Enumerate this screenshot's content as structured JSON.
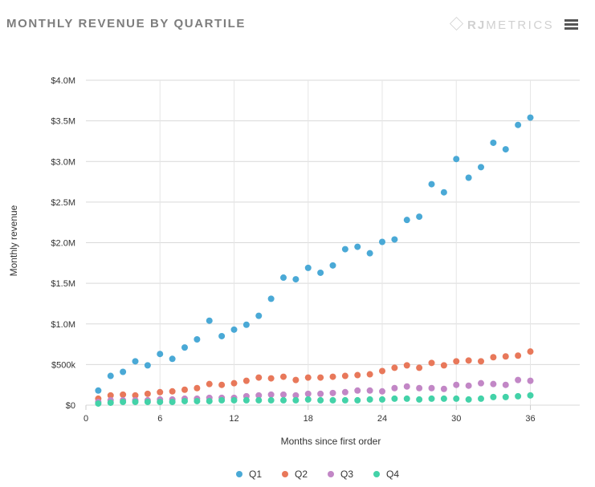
{
  "header": {
    "title": "MONTHLY REVENUE BY QUARTILE",
    "brand_prefix": "RJ",
    "brand_suffix": "METRICS",
    "menu_icon": "hamburger-menu-icon"
  },
  "colors": {
    "Q1": "#4aa9d6",
    "Q2": "#e8785a",
    "Q3": "#c287c6",
    "Q4": "#43d2a8",
    "grid": "#d9d9d9",
    "axis_text": "#333333"
  },
  "chart_data": {
    "type": "scatter",
    "xlabel": "Months since first order",
    "ylabel": "Monthly revenue",
    "xlim": [
      0,
      40
    ],
    "ylim": [
      0,
      4000000
    ],
    "x_ticks": [
      0,
      6,
      12,
      18,
      24,
      30,
      36
    ],
    "x_tick_labels": [
      "0",
      "6",
      "12",
      "18",
      "24",
      "30",
      "36"
    ],
    "y_ticks": [
      0,
      500000,
      1000000,
      1500000,
      2000000,
      2500000,
      3000000,
      3500000,
      4000000
    ],
    "y_tick_labels": [
      "$0",
      "$500k",
      "$1.0M",
      "$1.5M",
      "$2.0M",
      "$2.5M",
      "$3.0M",
      "$3.5M",
      "$4.0M"
    ],
    "grid": true,
    "legend_position": "bottom-center",
    "x": [
      1,
      2,
      3,
      4,
      5,
      6,
      7,
      8,
      9,
      10,
      11,
      12,
      13,
      14,
      15,
      16,
      17,
      18,
      19,
      20,
      21,
      22,
      23,
      24,
      25,
      26,
      27,
      28,
      29,
      30,
      31,
      32,
      33,
      34,
      35,
      36
    ],
    "series": [
      {
        "name": "Q1",
        "values": [
          180000,
          360000,
          410000,
          540000,
          490000,
          630000,
          570000,
          710000,
          810000,
          1040000,
          850000,
          930000,
          990000,
          1100000,
          1310000,
          1570000,
          1550000,
          1690000,
          1630000,
          1720000,
          1920000,
          1950000,
          1870000,
          2010000,
          2040000,
          2280000,
          2320000,
          2720000,
          2620000,
          3030000,
          2800000,
          2930000,
          3230000,
          3150000,
          3450000,
          3540000
        ]
      },
      {
        "name": "Q2",
        "values": [
          80000,
          120000,
          130000,
          120000,
          140000,
          160000,
          170000,
          190000,
          210000,
          260000,
          250000,
          270000,
          300000,
          340000,
          330000,
          350000,
          310000,
          340000,
          340000,
          350000,
          360000,
          370000,
          380000,
          420000,
          460000,
          490000,
          460000,
          520000,
          490000,
          540000,
          550000,
          540000,
          590000,
          600000,
          610000,
          660000
        ]
      },
      {
        "name": "Q3",
        "values": [
          40000,
          60000,
          60000,
          60000,
          60000,
          70000,
          70000,
          80000,
          80000,
          90000,
          90000,
          90000,
          110000,
          120000,
          130000,
          130000,
          120000,
          140000,
          140000,
          150000,
          160000,
          180000,
          180000,
          170000,
          210000,
          230000,
          210000,
          210000,
          200000,
          250000,
          240000,
          270000,
          260000,
          250000,
          310000,
          300000
        ]
      },
      {
        "name": "Q4",
        "values": [
          20000,
          30000,
          40000,
          40000,
          40000,
          40000,
          40000,
          50000,
          50000,
          50000,
          60000,
          60000,
          60000,
          60000,
          60000,
          60000,
          60000,
          70000,
          60000,
          60000,
          60000,
          60000,
          70000,
          70000,
          80000,
          80000,
          70000,
          80000,
          80000,
          80000,
          70000,
          80000,
          100000,
          100000,
          110000,
          120000
        ]
      }
    ]
  }
}
